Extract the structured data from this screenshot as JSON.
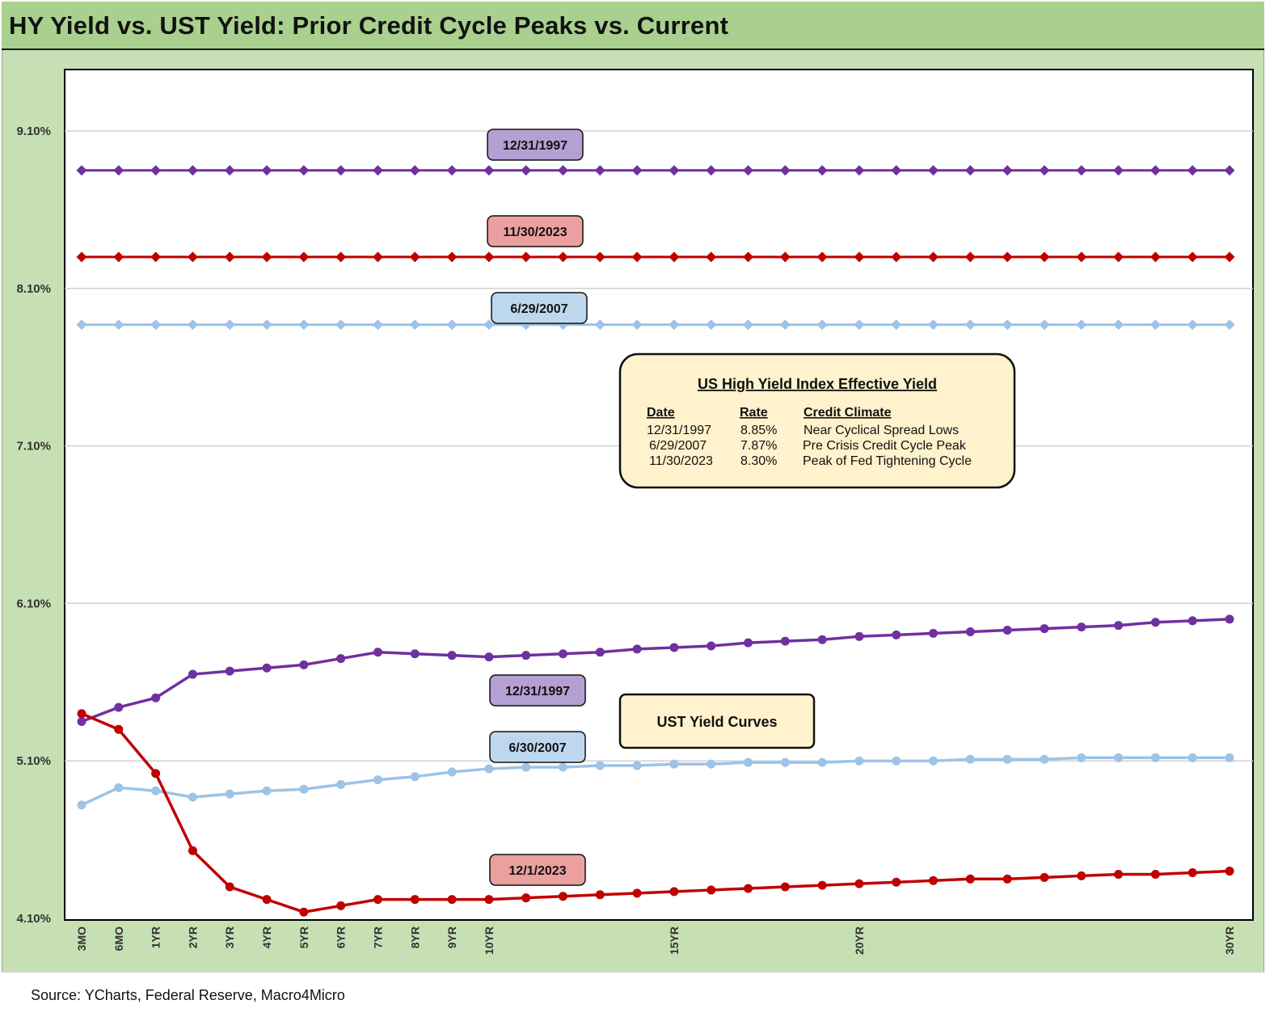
{
  "title": "HY Yield vs. UST Yield: Prior Credit Cycle Peaks vs. Current",
  "source": "Source: YCharts, Federal Reserve, Macro4Micro",
  "chart_data": {
    "type": "line",
    "ylim": [
      4.1,
      9.5
    ],
    "yticks": [
      "4.10%",
      "5.10%",
      "6.10%",
      "7.10%",
      "8.10%",
      "9.10%"
    ],
    "ytick_values": [
      4.1,
      5.1,
      6.1,
      7.1,
      8.1,
      9.1
    ],
    "x_count": 32,
    "x_tick_labels": [
      {
        "index": 0,
        "label": "3MO"
      },
      {
        "index": 1,
        "label": "6MO"
      },
      {
        "index": 2,
        "label": "1YR"
      },
      {
        "index": 3,
        "label": "2YR"
      },
      {
        "index": 4,
        "label": "3YR"
      },
      {
        "index": 5,
        "label": "4YR"
      },
      {
        "index": 6,
        "label": "5YR"
      },
      {
        "index": 7,
        "label": "6YR"
      },
      {
        "index": 8,
        "label": "7YR"
      },
      {
        "index": 9,
        "label": "8YR"
      },
      {
        "index": 10,
        "label": "9YR"
      },
      {
        "index": 11,
        "label": "10YR"
      },
      {
        "index": 16,
        "label": "15YR"
      },
      {
        "index": 21,
        "label": "20YR"
      },
      {
        "index": 31,
        "label": "30YR"
      }
    ],
    "grid": true,
    "series": [
      {
        "label": "12/31/1997",
        "kind": "hy",
        "color": "#7030a0",
        "marker": "diamond",
        "constant": 8.85
      },
      {
        "label": "11/30/2023",
        "kind": "hy",
        "color": "#c00000",
        "marker": "diamond",
        "constant": 8.3
      },
      {
        "label": "6/29/2007",
        "kind": "hy",
        "color": "#9dc3e6",
        "marker": "diamond",
        "constant": 7.87
      },
      {
        "label": "12/31/1997",
        "kind": "ust",
        "color": "#7030a0",
        "marker": "circle",
        "values": [
          5.35,
          5.44,
          5.5,
          5.65,
          5.67,
          5.69,
          5.71,
          5.75,
          5.79,
          5.78,
          5.77,
          5.76,
          5.77,
          5.78,
          5.79,
          5.81,
          5.82,
          5.83,
          5.85,
          5.86,
          5.87,
          5.89,
          5.9,
          5.91,
          5.92,
          5.93,
          5.94,
          5.95,
          5.96,
          5.98,
          5.99,
          6.0
        ]
      },
      {
        "label": "6/30/2007",
        "kind": "ust",
        "color": "#9dc3e6",
        "marker": "circle",
        "values": [
          4.82,
          4.93,
          4.91,
          4.87,
          4.89,
          4.91,
          4.92,
          4.95,
          4.98,
          5.0,
          5.03,
          5.05,
          5.06,
          5.06,
          5.07,
          5.07,
          5.08,
          5.08,
          5.09,
          5.09,
          5.09,
          5.1,
          5.1,
          5.1,
          5.11,
          5.11,
          5.11,
          5.12,
          5.12,
          5.12,
          5.12,
          5.12
        ]
      },
      {
        "label": "12/1/2023",
        "kind": "ust",
        "color": "#c00000",
        "marker": "circle",
        "values": [
          5.4,
          5.3,
          5.02,
          4.53,
          4.3,
          4.22,
          4.14,
          4.18,
          4.22,
          4.22,
          4.22,
          4.22,
          4.23,
          4.24,
          4.25,
          4.26,
          4.27,
          4.28,
          4.29,
          4.3,
          4.31,
          4.32,
          4.33,
          4.34,
          4.35,
          4.35,
          4.36,
          4.37,
          4.38,
          4.38,
          4.39,
          4.4
        ]
      }
    ]
  },
  "tags": [
    {
      "text": "12/31/1997",
      "color": "#b4a0d2"
    },
    {
      "text": "11/30/2023",
      "color": "#eba0a0"
    },
    {
      "text": "6/29/2007",
      "color": "#bdd7ee"
    },
    {
      "text": "12/31/1997",
      "color": "#b4a0d2"
    },
    {
      "text": "6/30/2007",
      "color": "#bdd7ee"
    },
    {
      "text": "12/1/2023",
      "color": "#eba0a0"
    }
  ],
  "info_box": {
    "title": "US High Yield Index Effective Yield",
    "headers": [
      "Date",
      "Rate",
      "Credit Climate"
    ],
    "rows": [
      [
        "12/31/1997",
        "8.85%",
        "Near Cyclical Spread Lows"
      ],
      [
        "6/29/2007",
        "7.87%",
        "Pre Crisis Credit Cycle Peak"
      ],
      [
        "11/30/2023",
        "8.30%",
        "Peak of Fed Tightening Cycle"
      ]
    ],
    "fill": "#fff2cc"
  },
  "ust_box": {
    "text": "UST Yield Curves",
    "fill": "#fff2cc"
  }
}
